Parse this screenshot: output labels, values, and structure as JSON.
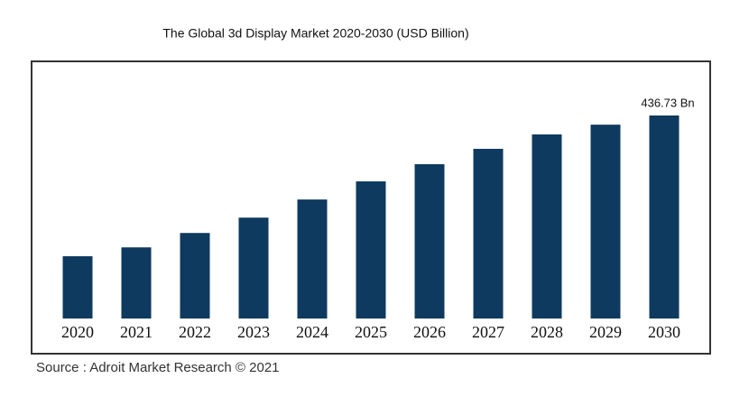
{
  "chart_data": {
    "type": "bar",
    "title": "The Global 3d Display Market 2020-2030 (USD Billion)",
    "categories": [
      "2020",
      "2021",
      "2022",
      "2023",
      "2024",
      "2025",
      "2026",
      "2027",
      "2028",
      "2029",
      "2030"
    ],
    "values": [
      134,
      153,
      184,
      217,
      256,
      295,
      332,
      365,
      396,
      417,
      436.73
    ],
    "value_labels": [
      null,
      null,
      null,
      null,
      null,
      null,
      null,
      null,
      null,
      null,
      "436.73 Bn"
    ],
    "color": "#0f3a5f",
    "source": "Source : Adroit Market Research © 2021"
  }
}
